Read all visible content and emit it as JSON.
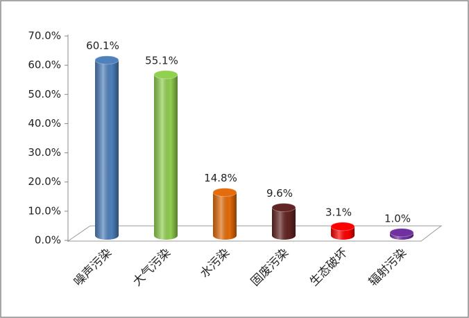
{
  "chart_data": {
    "type": "bar3d",
    "categories": [
      "噪声污染",
      "大气污染",
      "水污染",
      "固废污染",
      "生态破坏",
      "辐射污染"
    ],
    "values": [
      60.1,
      55.1,
      14.8,
      9.6,
      3.1,
      1.0
    ],
    "value_labels": [
      "60.1%",
      "55.1%",
      "14.8%",
      "9.6%",
      "3.1%",
      "1.0%"
    ],
    "colors": [
      "#4f81bd",
      "#92d050",
      "#e46c0a",
      "#632523",
      "#ff0000",
      "#7030a0"
    ],
    "ylim": [
      0,
      70
    ],
    "yticks": [
      {
        "value": 0,
        "label": "0.0%"
      },
      {
        "value": 10,
        "label": "10.0%"
      },
      {
        "value": 20,
        "label": "20.0%"
      },
      {
        "value": 30,
        "label": "30.0%"
      },
      {
        "value": 40,
        "label": "40.0%"
      },
      {
        "value": 50,
        "label": "50.0%"
      },
      {
        "value": 60,
        "label": "60.0%"
      },
      {
        "value": 70,
        "label": "70.0%"
      }
    ]
  }
}
